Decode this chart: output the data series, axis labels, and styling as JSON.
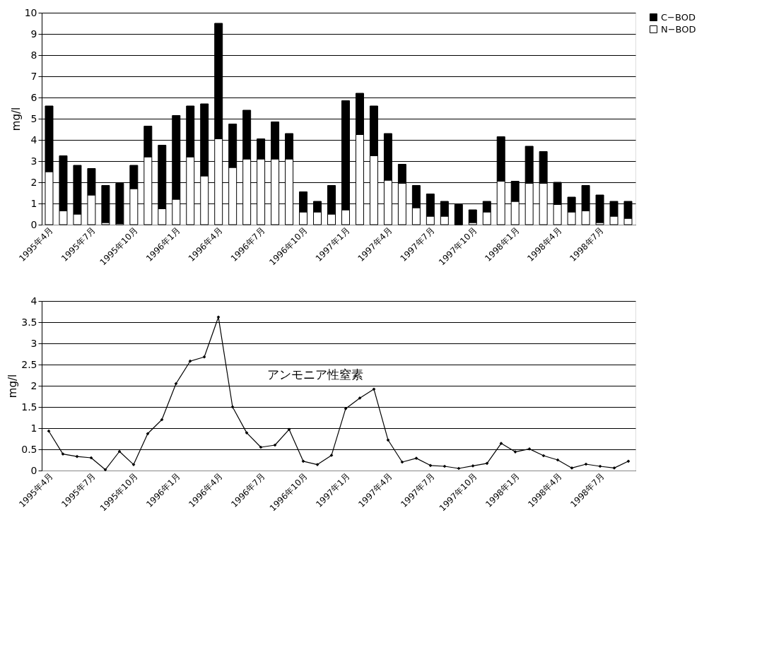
{
  "chart_data": [
    {
      "type": "bar",
      "stacked": true,
      "ylabel": "mg/l",
      "ylim": [
        0,
        10
      ],
      "yticks": [
        0,
        1,
        2,
        3,
        4,
        5,
        6,
        7,
        8,
        9,
        10
      ],
      "grid": "y",
      "legend": "right",
      "categories": [
        "1995年4月",
        null,
        null,
        "1995年7月",
        null,
        null,
        "1995年10月",
        null,
        null,
        "1996年1月",
        null,
        null,
        "1996年4月",
        null,
        null,
        "1996年7月",
        null,
        null,
        "1996年10月",
        null,
        null,
        "1997年1月",
        null,
        null,
        "1997年4月",
        null,
        null,
        "1997年7月",
        null,
        null,
        "1997年10月",
        null,
        null,
        "1998年1月",
        null,
        null,
        "1998年4月",
        null,
        null,
        "1998年7月",
        null,
        null
      ],
      "series": [
        {
          "name": "N−BOD",
          "color": "#ffffff",
          "values": [
            2.5,
            0.65,
            0.5,
            1.4,
            0.1,
            0.05,
            1.7,
            3.2,
            0.75,
            1.2,
            3.2,
            2.3,
            4.05,
            2.7,
            3.1,
            3.1,
            3.1,
            3.1,
            0.6,
            0.6,
            0.5,
            0.7,
            4.25,
            3.25,
            2.1,
            1.95,
            0.8,
            0.4,
            0.4,
            0,
            0.1,
            0.6,
            2.05,
            1.1,
            1.95,
            1.95,
            0.95,
            0.6,
            0.65,
            0.1,
            0.4,
            0.3
          ]
        },
        {
          "name": "C−BOD",
          "color": "#000000",
          "values": [
            3.1,
            2.6,
            2.3,
            1.25,
            1.75,
            1.9,
            1.1,
            1.45,
            3.0,
            3.95,
            2.4,
            3.4,
            5.45,
            2.05,
            2.3,
            0.95,
            1.75,
            1.2,
            0.95,
            0.5,
            1.35,
            5.15,
            1.95,
            2.35,
            2.2,
            0.9,
            1.05,
            1.05,
            0.7,
            0.95,
            0.6,
            0.5,
            2.1,
            0.95,
            1.75,
            1.5,
            1.05,
            0.7,
            1.2,
            1.3,
            0.7,
            0.8
          ]
        }
      ]
    },
    {
      "type": "line",
      "ylabel": "mg/l",
      "ylim": [
        0,
        4
      ],
      "yticks": [
        0,
        0.5,
        1,
        1.5,
        2,
        2.5,
        3,
        3.5,
        4
      ],
      "grid": "y",
      "marker": "diamond",
      "line_style": "solid",
      "categories": [
        "1995年4月",
        null,
        null,
        "1995年7月",
        null,
        null,
        "1995年10月",
        null,
        null,
        "1996年1月",
        null,
        null,
        "1996年4月",
        null,
        null,
        "1996年7月",
        null,
        null,
        "1996年10月",
        null,
        null,
        "1997年1月",
        null,
        null,
        "1997年4月",
        null,
        null,
        "1997年7月",
        null,
        null,
        "1997年10月",
        null,
        null,
        "1998年1月",
        null,
        null,
        "1998年4月",
        null,
        null,
        "1998年7月",
        null,
        null
      ],
      "series": [
        {
          "name": "アンモニア性窒素",
          "color": "#000000",
          "values": [
            0.93,
            0.39,
            0.33,
            0.3,
            0.02,
            0.45,
            0.14,
            0.87,
            1.2,
            2.05,
            2.58,
            2.68,
            3.62,
            1.5,
            0.89,
            0.55,
            0.6,
            0.97,
            0.22,
            0.14,
            0.36,
            1.46,
            1.71,
            1.92,
            0.72,
            0.2,
            0.29,
            0.12,
            0.1,
            0.05,
            0.11,
            0.17,
            0.64,
            0.44,
            0.51,
            0.35,
            0.25,
            0.06,
            0.15,
            0.1,
            0.06,
            0.22
          ]
        }
      ]
    }
  ]
}
